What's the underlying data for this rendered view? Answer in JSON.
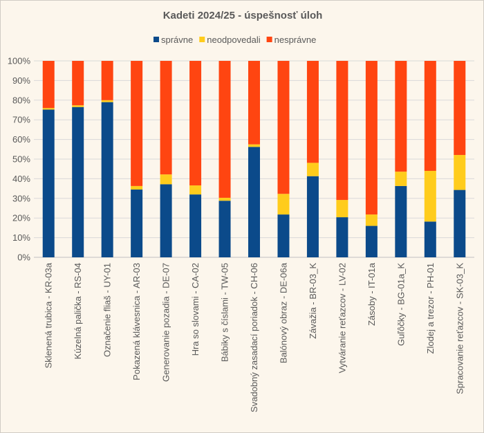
{
  "chart_data": {
    "type": "bar",
    "stacked": true,
    "normalized": true,
    "title": "Kadeti 2024/25 - úspešnosť úloh",
    "xlabel": "",
    "ylabel": "",
    "ylim": [
      0,
      100
    ],
    "yticks": [
      "0%",
      "10%",
      "20%",
      "30%",
      "40%",
      "50%",
      "60%",
      "70%",
      "80%",
      "90%",
      "100%"
    ],
    "grid": true,
    "legend_position": "top",
    "categories": [
      "Sklenená trubica - KR-03a",
      "Kúzelná palička - RS-04",
      "Označenie fliaš - UY-01",
      "Pokazená klávesnica - AR-03",
      "Generovanie pozadia - DE-07",
      "Hra so slovami - CA-02",
      "Bábiky s číslami - TW-05",
      "Svadobný zasadací poriadok - CH-06",
      "Balónový obraz - DE-06a",
      "Závažia - BR-03_K",
      "Vytváranie reťazcov - LV-02",
      "Zásoby - IT-01a",
      "Guľôčky - BG-01a_K",
      "Zlodej a trezor - PH-01",
      "Spracovanie reťazcov - SK-03_K"
    ],
    "series": [
      {
        "name": "správne",
        "color": "#0b4a8a",
        "values": [
          75.2,
          76.5,
          79.0,
          34.5,
          37.2,
          32.0,
          28.8,
          56.2,
          21.8,
          41.3,
          20.4,
          16.0,
          36.3,
          18.2,
          34.3
        ]
      },
      {
        "name": "neodpovedali",
        "color": "#ffcc1c",
        "values": [
          0.8,
          0.9,
          1.0,
          1.8,
          5.0,
          4.6,
          1.5,
          1.3,
          10.5,
          6.8,
          8.8,
          5.8,
          7.3,
          25.8,
          17.8
        ]
      },
      {
        "name": "nesprávne",
        "color": "#ff4511",
        "values": [
          24.0,
          22.6,
          20.0,
          63.7,
          57.8,
          63.4,
          69.7,
          42.5,
          67.7,
          51.9,
          70.8,
          78.2,
          56.4,
          56.0,
          47.9
        ]
      }
    ]
  }
}
